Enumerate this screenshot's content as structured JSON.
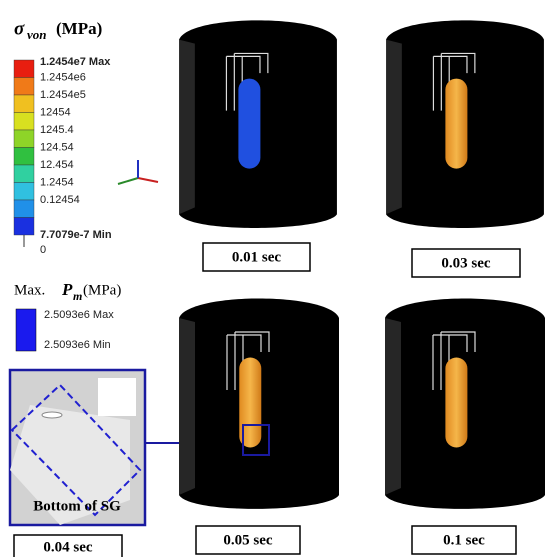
{
  "legend": {
    "symbol": "σ",
    "subscript": "von",
    "unit": "(MPa)",
    "labels": [
      "1.2454e7 Max",
      "1.2454e6",
      "1.2454e5",
      "12454",
      "1245.4",
      "124.54",
      "12.454",
      "1.2454",
      "0.12454",
      "7.7079e-7 Min"
    ],
    "zero": "0"
  },
  "pm_legend": {
    "prefix": "Max.",
    "symbol": "P",
    "subscript": "m",
    "unit": "(MPa)",
    "max": "2.5093e6 Max",
    "min": "2.5093e6 Min"
  },
  "inset": {
    "label": "Bottom of SG",
    "time": "0.04 sec"
  },
  "panels": [
    {
      "time": "0.01 sec"
    },
    {
      "time": "0.03 sec"
    },
    {
      "time": "0.05 sec"
    },
    {
      "time": "0.1 sec"
    }
  ]
}
